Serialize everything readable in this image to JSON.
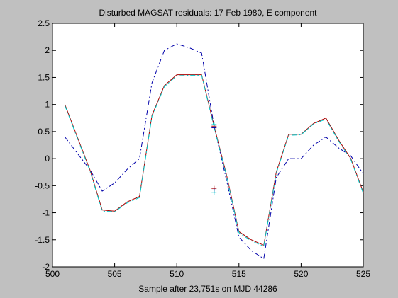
{
  "chart_data": {
    "type": "line",
    "title": "Disturbed MAGSAT residuals: 17 Feb 1980, E component",
    "xlabel": "Sample after 23,751s on MJD 44286",
    "ylabel": "",
    "xlim": [
      500,
      525
    ],
    "ylim": [
      -2,
      2.5
    ],
    "xticks": [
      500,
      505,
      510,
      515,
      520,
      525
    ],
    "yticks": [
      -2,
      -1.5,
      -1,
      -0.5,
      0,
      0.5,
      1,
      1.5,
      2,
      2.5
    ],
    "xtick_labels": [
      "500",
      "505",
      "510",
      "515",
      "520",
      "525"
    ],
    "ytick_labels": [
      "-2",
      "-1.5",
      "-1",
      "-0.5",
      "0",
      "0.5",
      "1",
      "1.5",
      "2",
      "2.5"
    ],
    "grid": false,
    "series": [
      {
        "color": "#0000aa",
        "style": "dashdot",
        "x": [
          501,
          502,
          503,
          504,
          505,
          506,
          507,
          508,
          509,
          510,
          511,
          512,
          513,
          514,
          515,
          516,
          517,
          518,
          519,
          520,
          521,
          522,
          523,
          524,
          525
        ],
        "y": [
          0.4,
          0.1,
          -0.2,
          -0.6,
          -0.45,
          -0.2,
          0.0,
          1.4,
          2.0,
          2.12,
          2.05,
          1.95,
          0.6,
          -0.4,
          -1.45,
          -1.7,
          -1.85,
          -0.35,
          0.0,
          0.0,
          0.25,
          0.4,
          0.2,
          0.05,
          -0.28
        ]
      },
      {
        "color": "#aa0000",
        "style": "solid",
        "x": [
          501,
          502,
          503,
          504,
          505,
          506,
          507,
          508,
          509,
          510,
          511,
          512,
          513,
          514,
          515,
          516,
          517,
          518,
          519,
          520,
          521,
          522,
          523,
          524,
          525
        ],
        "y": [
          1.0,
          0.4,
          -0.2,
          -0.95,
          -0.97,
          -0.8,
          -0.7,
          0.8,
          1.35,
          1.55,
          1.55,
          1.55,
          0.6,
          -0.3,
          -1.35,
          -1.5,
          -1.6,
          -0.25,
          0.45,
          0.45,
          0.65,
          0.75,
          0.35,
          0.0,
          -0.62
        ]
      },
      {
        "color": "#00cccc",
        "style": "dashdot",
        "x": [
          501,
          502,
          503,
          504,
          505,
          506,
          507,
          508,
          509,
          510,
          511,
          512,
          513,
          514,
          515,
          516,
          517,
          518,
          519,
          520,
          521,
          522,
          523,
          524,
          525
        ],
        "y": [
          0.98,
          0.38,
          -0.22,
          -0.97,
          -0.98,
          -0.82,
          -0.72,
          0.78,
          1.33,
          1.53,
          1.54,
          1.54,
          0.58,
          -0.32,
          -1.37,
          -1.52,
          -1.62,
          -0.27,
          0.43,
          0.44,
          0.64,
          0.73,
          0.33,
          -0.02,
          -0.64
        ]
      }
    ],
    "markers": [
      {
        "symbol": "+",
        "color": "#aa0000",
        "x": 513,
        "y": 0.6
      },
      {
        "symbol": "+",
        "color": "#0000aa",
        "x": 513,
        "y": 0.57
      },
      {
        "symbol": "+",
        "color": "#00cccc",
        "x": 513,
        "y": 0.63
      },
      {
        "symbol": "+",
        "color": "#aa0000",
        "x": 513,
        "y": -0.55
      },
      {
        "symbol": "+",
        "color": "#0000aa",
        "x": 513,
        "y": -0.58
      },
      {
        "symbol": "+",
        "color": "#00cccc",
        "x": 513,
        "y": -0.63
      }
    ]
  }
}
